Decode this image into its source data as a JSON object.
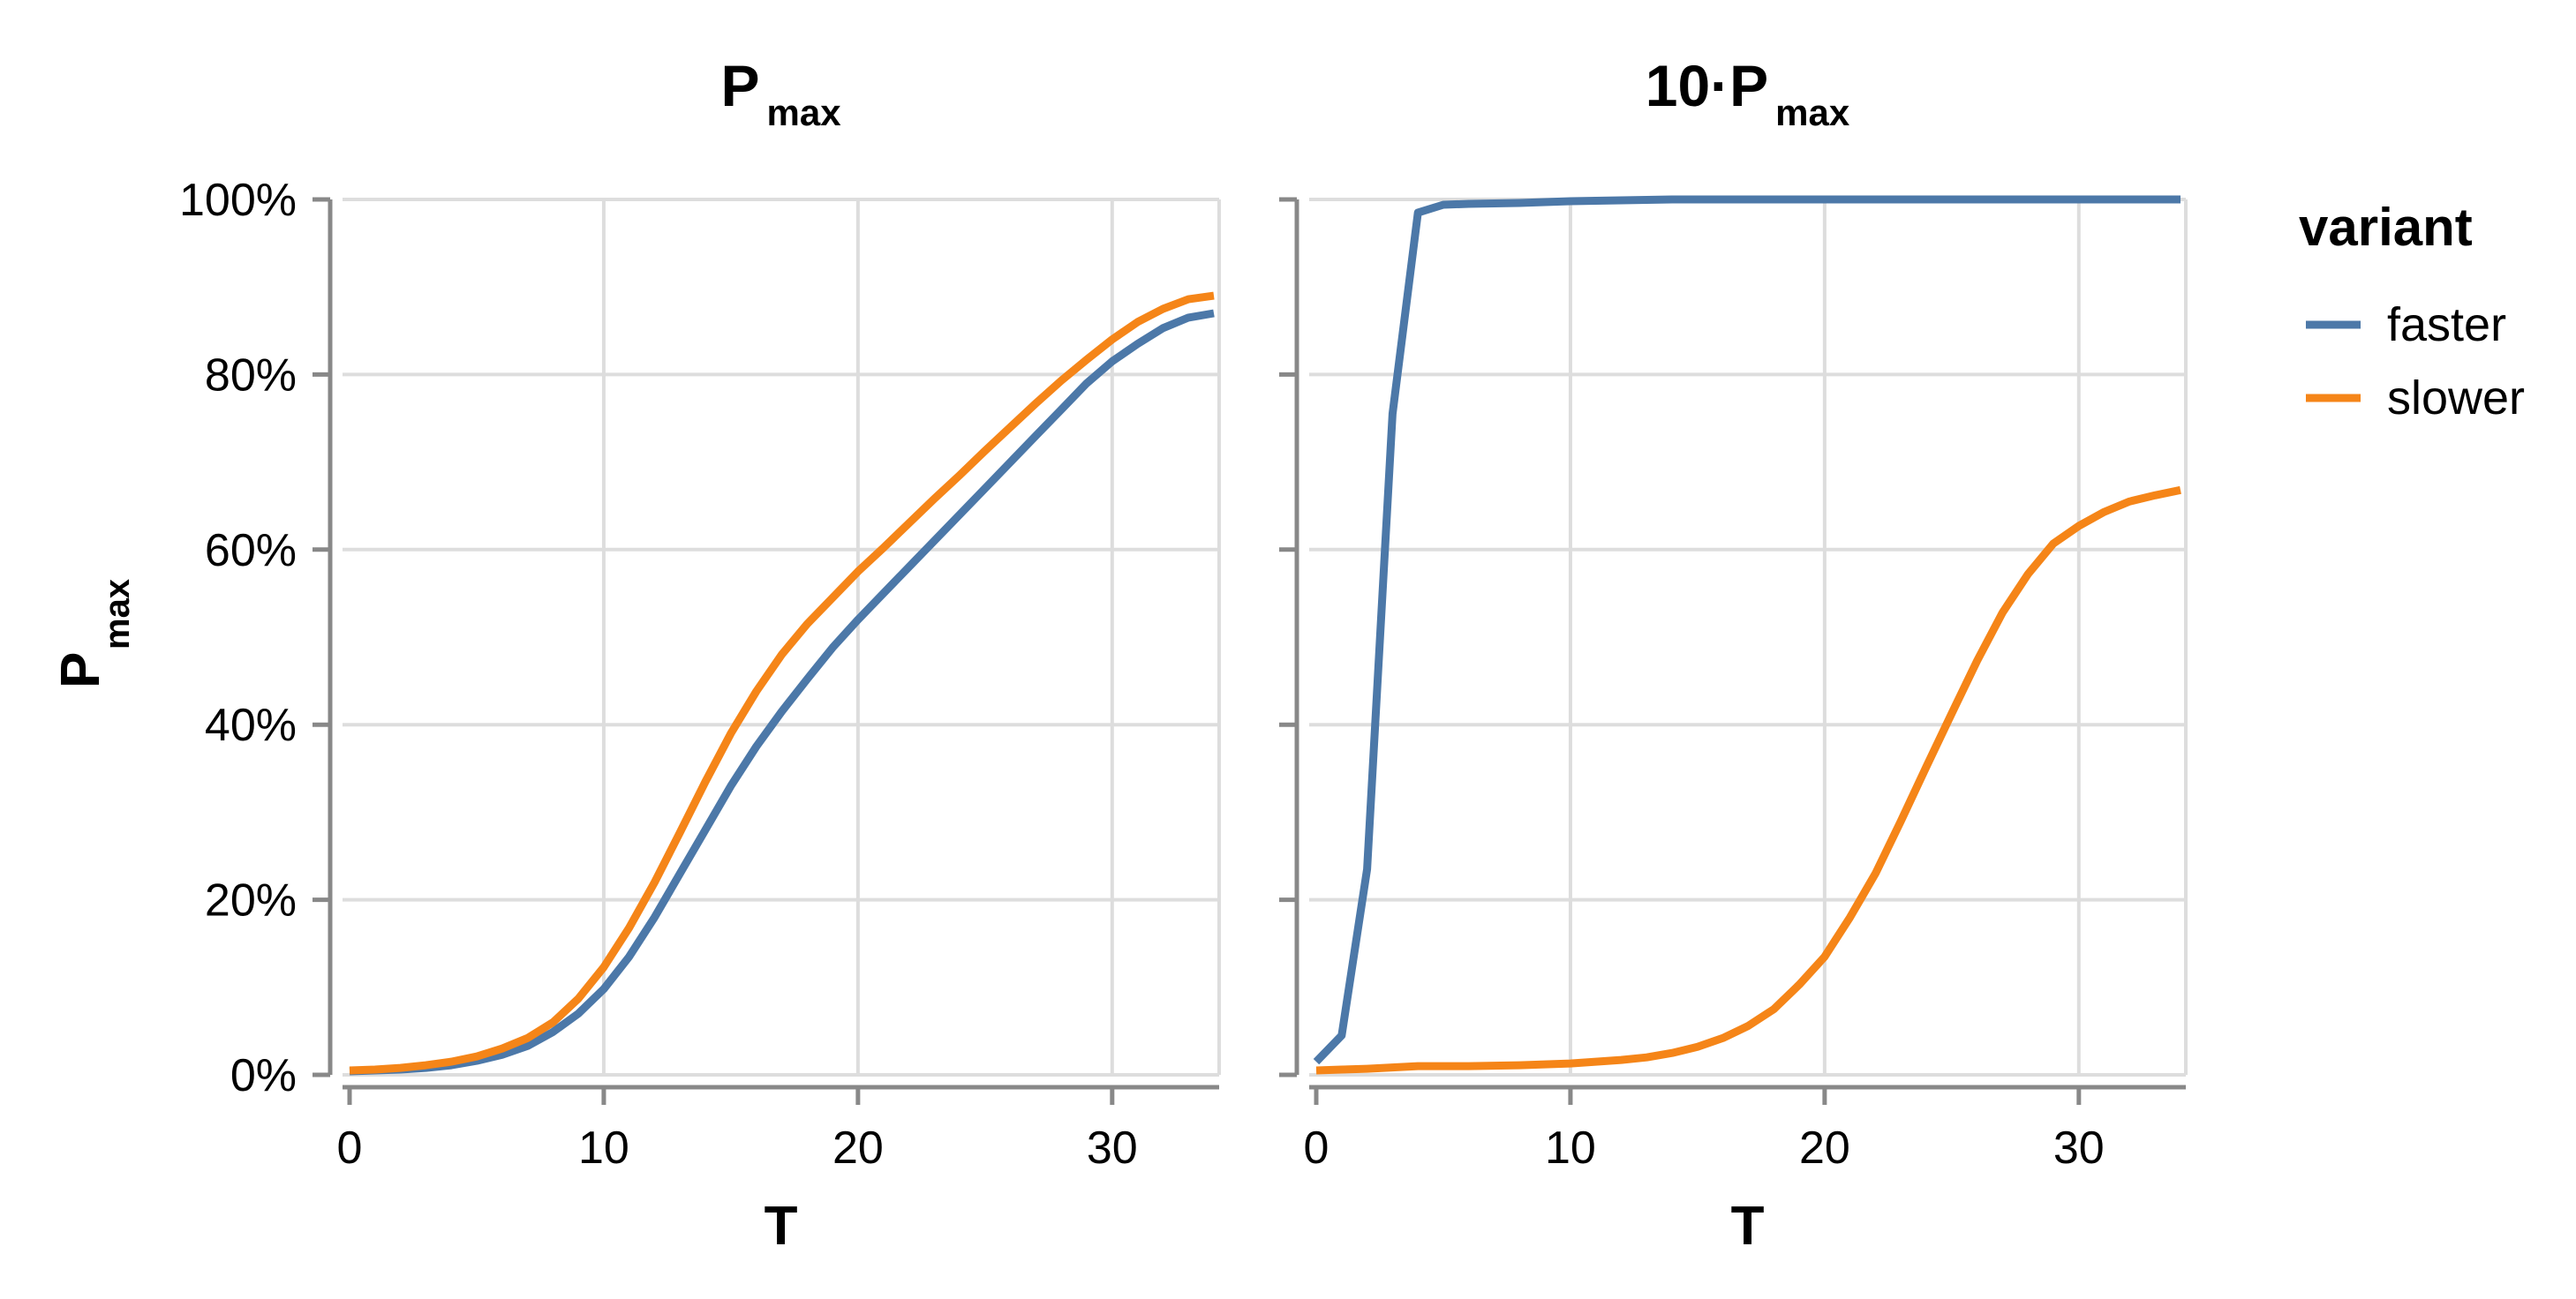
{
  "chart_data": {
    "type": "line",
    "y_axis": {
      "title_main": "P",
      "title_sub": "max",
      "ticks": [
        0,
        20,
        40,
        60,
        80,
        100
      ],
      "tick_labels": [
        "0%",
        "20%",
        "40%",
        "60%",
        "80%",
        "100%"
      ],
      "ylim": [
        0,
        100
      ],
      "grid": true
    },
    "x_axis": {
      "title": "T",
      "ticks": [
        0,
        10,
        20,
        30
      ],
      "tick_labels": [
        "0",
        "10",
        "20",
        "30"
      ],
      "xlim": [
        0,
        34
      ],
      "grid": true
    },
    "legend": {
      "title": "variant",
      "placement": "right",
      "entries": [
        {
          "name": "faster",
          "color": "#4c78a8"
        },
        {
          "name": "slower",
          "color": "#f58518"
        }
      ]
    },
    "facets": [
      {
        "title_main": "P",
        "title_sub": "max",
        "series": [
          {
            "name": "faster",
            "color": "#4c78a8",
            "x": [
              0,
              1,
              2,
              3,
              4,
              5,
              6,
              7,
              8,
              9,
              10,
              11,
              12,
              13,
              14,
              15,
              16,
              17,
              18,
              19,
              20,
              21,
              22,
              23,
              24,
              25,
              26,
              27,
              28,
              29,
              30,
              31,
              32,
              33,
              34
            ],
            "y": [
              0.4,
              0.5,
              0.6,
              0.8,
              1.1,
              1.6,
              2.3,
              3.3,
              4.9,
              7.0,
              9.8,
              13.5,
              18.0,
              23.0,
              28.0,
              33.0,
              37.5,
              41.5,
              45.2,
              48.8,
              52.0,
              55.0,
              58.0,
              61.0,
              64.0,
              67.0,
              70.0,
              73.0,
              76.0,
              79.0,
              81.5,
              83.5,
              85.3,
              86.5,
              87.0
            ]
          },
          {
            "name": "slower",
            "color": "#f58518",
            "x": [
              0,
              1,
              2,
              3,
              4,
              5,
              6,
              7,
              8,
              9,
              10,
              11,
              12,
              13,
              14,
              15,
              16,
              17,
              18,
              19,
              20,
              21,
              22,
              23,
              24,
              25,
              26,
              27,
              28,
              29,
              30,
              31,
              32,
              33,
              34
            ],
            "y": [
              0.5,
              0.6,
              0.8,
              1.1,
              1.5,
              2.1,
              3.0,
              4.2,
              6.0,
              8.7,
              12.3,
              16.8,
              22.0,
              27.7,
              33.5,
              39.0,
              43.8,
              48.0,
              51.5,
              54.5,
              57.5,
              60.2,
              63.0,
              65.8,
              68.5,
              71.3,
              74.0,
              76.7,
              79.3,
              81.7,
              84.0,
              86.0,
              87.5,
              88.6,
              89.0
            ]
          }
        ]
      },
      {
        "title_main": "10·P",
        "title_sub": "max",
        "series": [
          {
            "name": "faster",
            "color": "#4c78a8",
            "x": [
              0,
              1,
              2,
              3,
              4,
              5,
              6,
              8,
              10,
              12,
              14,
              16,
              18,
              20,
              22,
              24,
              26,
              28,
              30,
              32,
              34
            ],
            "y": [
              1.5,
              4.5,
              23.5,
              75.5,
              98.5,
              99.4,
              99.5,
              99.6,
              99.8,
              99.9,
              100,
              100,
              100,
              100,
              100,
              100,
              100,
              100,
              100,
              100,
              100
            ]
          },
          {
            "name": "slower",
            "color": "#f58518",
            "x": [
              0,
              1,
              2,
              3,
              4,
              5,
              6,
              7,
              8,
              9,
              10,
              11,
              12,
              13,
              14,
              15,
              16,
              17,
              18,
              19,
              20,
              21,
              22,
              23,
              24,
              25,
              26,
              27,
              28,
              29,
              30,
              31,
              32,
              33,
              34
            ],
            "y": [
              0.5,
              0.6,
              0.7,
              0.85,
              1.0,
              1.0,
              1.0,
              1.05,
              1.1,
              1.2,
              1.3,
              1.5,
              1.7,
              2.0,
              2.5,
              3.2,
              4.2,
              5.6,
              7.5,
              10.3,
              13.5,
              18.0,
              23.0,
              29.0,
              35.2,
              41.3,
              47.3,
              52.8,
              57.2,
              60.7,
              62.7,
              64.3,
              65.5,
              66.2,
              66.8
            ]
          }
        ]
      }
    ]
  }
}
